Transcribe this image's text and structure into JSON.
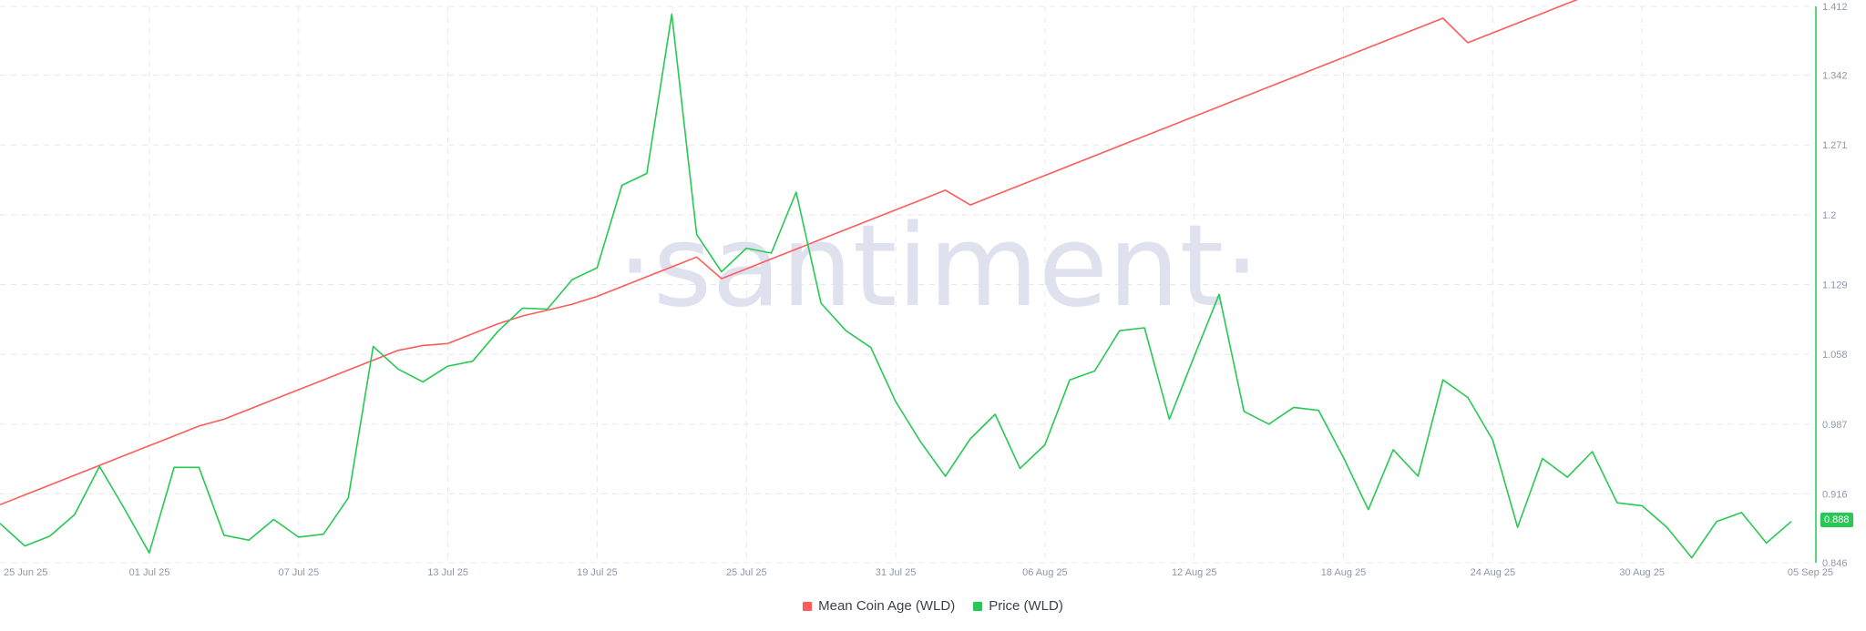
{
  "chart_data": {
    "type": "line",
    "title": "",
    "xlabel": "",
    "ylabel": "",
    "watermark": "·santiment·",
    "x_ticks": [
      "25 Jun 25",
      "01 Jul 25",
      "07 Jul 25",
      "13 Jul 25",
      "19 Jul 25",
      "25 Jul 25",
      "31 Jul 25",
      "06 Aug 25",
      "12 Aug 25",
      "18 Aug 25",
      "24 Aug 25",
      "30 Aug 25",
      "05 Sep 25"
    ],
    "right_axis_ticks": [
      "1.412",
      "1.342",
      "1.271",
      "1.2",
      "1.129",
      "1.058",
      "0.987",
      "0.916",
      "0.846"
    ],
    "right_axis_range": [
      0.846,
      1.412
    ],
    "last_price_label": "0.888",
    "series": [
      {
        "name": "Mean Coin Age (WLD)",
        "color": "#ff5b5b",
        "axis": "hidden",
        "values_relative": [
          0.905,
          0.915,
          0.925,
          0.935,
          0.945,
          0.955,
          0.965,
          0.975,
          0.985,
          0.992,
          1.002,
          1.012,
          1.022,
          1.032,
          1.042,
          1.052,
          1.062,
          1.067,
          1.069,
          1.079,
          1.089,
          1.097,
          1.103,
          1.109,
          1.117,
          1.127,
          1.137,
          1.147,
          1.157,
          1.135,
          1.145,
          1.155,
          1.165,
          1.175,
          1.185,
          1.195,
          1.205,
          1.215,
          1.225,
          1.21,
          1.22,
          1.23,
          1.24,
          1.25,
          1.26,
          1.27,
          1.28,
          1.29,
          1.3,
          1.31,
          1.32,
          1.33,
          1.34,
          1.35,
          1.36,
          1.37,
          1.38,
          1.39,
          1.4,
          1.375,
          1.385,
          1.395,
          1.405,
          1.415,
          1.425,
          1.435,
          1.445,
          1.455,
          1.465,
          1.475,
          1.485,
          1.495,
          1.505
        ]
      },
      {
        "name": "Price (WLD)",
        "color": "#26c953",
        "axis": "right",
        "values": [
          0.886,
          0.863,
          0.873,
          0.895,
          0.944,
          0.901,
          0.856,
          0.943,
          0.943,
          0.874,
          0.869,
          0.89,
          0.872,
          0.875,
          0.912,
          1.066,
          1.043,
          1.03,
          1.046,
          1.051,
          1.081,
          1.105,
          1.104,
          1.134,
          1.146,
          1.23,
          1.242,
          1.404,
          1.18,
          1.142,
          1.166,
          1.161,
          1.223,
          1.11,
          1.082,
          1.065,
          1.01,
          0.969,
          0.934,
          0.972,
          0.997,
          0.942,
          0.966,
          1.032,
          1.041,
          1.082,
          1.085,
          0.992,
          1.056,
          1.119,
          1.0,
          0.987,
          1.004,
          1.001,
          0.953,
          0.9,
          0.961,
          0.934,
          1.032,
          1.014,
          0.971,
          0.882,
          0.952,
          0.933,
          0.959,
          0.907,
          0.904,
          0.882,
          0.851,
          0.888,
          0.897,
          0.866,
          0.888
        ]
      }
    ],
    "legend_position": "bottom-center",
    "grid": true
  }
}
